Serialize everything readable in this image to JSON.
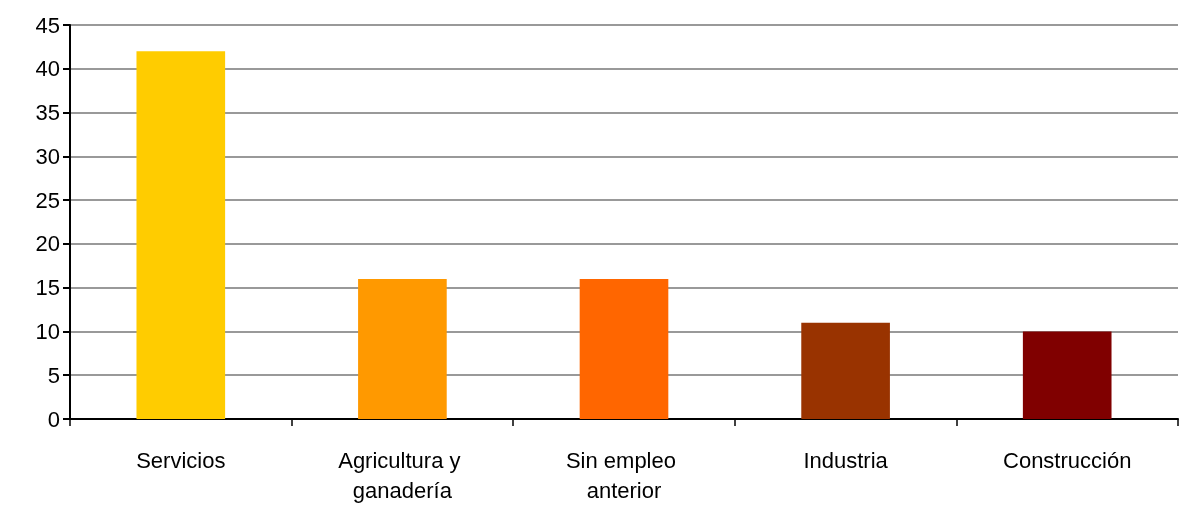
{
  "chart_data": {
    "type": "bar",
    "categories": [
      "Servicios",
      "Agricultura y ganadería",
      "Sin empleo anterior",
      "Industria",
      "Construcción"
    ],
    "values": [
      42,
      16,
      16,
      11,
      10
    ],
    "colors": [
      "#ffcc00",
      "#ff9900",
      "#ff6600",
      "#993300",
      "#800000"
    ],
    "ylim": [
      0,
      45
    ],
    "yticks": [
      0,
      5,
      10,
      15,
      20,
      25,
      30,
      35,
      40,
      45
    ],
    "grid": "y"
  }
}
